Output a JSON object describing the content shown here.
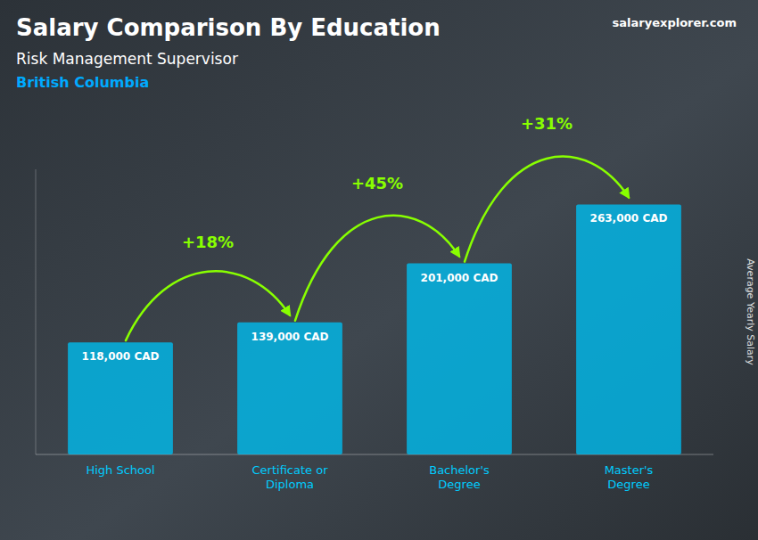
{
  "chart_data": {
    "type": "bar",
    "title": "Salary Comparison By Education",
    "subtitle": [
      "Risk Management Supervisor",
      "British Columbia"
    ],
    "y_label": "Average Yearly Salary",
    "source": "salaryexplorer.com",
    "categories": [
      "High School",
      "Certificate or\nDiploma",
      "Bachelor's\nDegree",
      "Master's\nDegree"
    ],
    "values": [
      118000,
      139000,
      201000,
      263000
    ],
    "value_labels": [
      "118,000 CAD",
      "139,000 CAD",
      "201,000 CAD",
      "263,000 CAD"
    ],
    "data_labels": true,
    "annotations": [
      "+18%",
      "+45%",
      "+31%"
    ],
    "color": "#00bbee",
    "ylim": [
      0,
      300000
    ],
    "tick_labels": "x",
    "grid": false
  }
}
